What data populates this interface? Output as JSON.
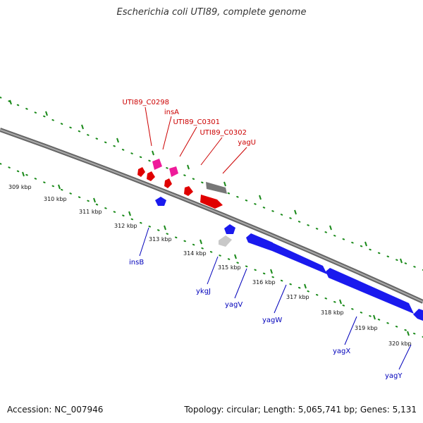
{
  "title": "Escherichia coli UTI89, complete genome",
  "footer": {
    "accession": "Accession: NC_007946",
    "stats": "Topology: circular; Length: 5,065,741 bp; Genes: 5,131"
  },
  "colors": {
    "forward_gene": "#ee0000",
    "forward_mobile": "#ee1b9a",
    "reverse_gene": "#1a1aee",
    "backbone": "#888888",
    "ticks": "#1a8a1a"
  },
  "ticks": [
    "309 kbp",
    "310 kbp",
    "311 kbp",
    "312 kbp",
    "313 kbp",
    "314 kbp",
    "315 kbp",
    "316 kbp",
    "317 kbp",
    "318 kbp",
    "319 kbp",
    "320 kbp"
  ],
  "labels_top": [
    "UTI89_C0298",
    "insA",
    "UTI89_C0301",
    "UTI89_C0302",
    "yagU"
  ],
  "labels_bottom": [
    "insB",
    "ykgJ",
    "yagV",
    "yagW",
    "yagX",
    "yagY"
  ]
}
